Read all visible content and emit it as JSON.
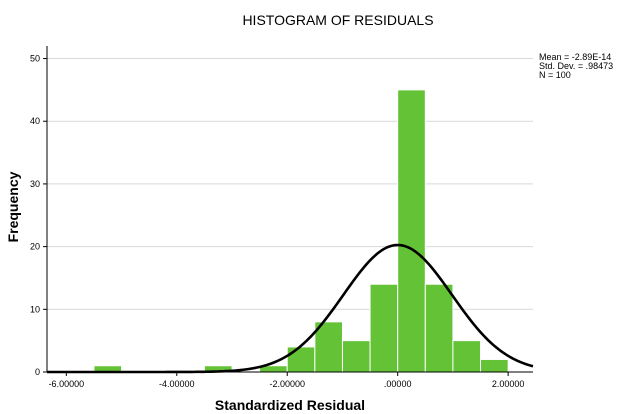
{
  "chart_data": {
    "type": "bar",
    "title": "HISTOGRAM OF RESIDUALS",
    "xlabel": "Standardized Residual",
    "ylabel": "Frequency",
    "xlim": [
      -6.35,
      2.45
    ],
    "ylim": [
      0,
      52
    ],
    "grid": true,
    "bin_width": 0.5,
    "bins": [
      {
        "start": -5.5,
        "end": -5.0,
        "count": 1
      },
      {
        "start": -3.5,
        "end": -3.0,
        "count": 1
      },
      {
        "start": -2.5,
        "end": -2.0,
        "count": 1
      },
      {
        "start": -2.0,
        "end": -1.5,
        "count": 4
      },
      {
        "start": -1.5,
        "end": -1.0,
        "count": 8
      },
      {
        "start": -1.0,
        "end": -0.5,
        "count": 5
      },
      {
        "start": -0.5,
        "end": 0.0,
        "count": 14
      },
      {
        "start": 0.0,
        "end": 0.5,
        "count": 45
      },
      {
        "start": 0.5,
        "end": 1.0,
        "count": 14
      },
      {
        "start": 1.0,
        "end": 1.5,
        "count": 5
      },
      {
        "start": 1.5,
        "end": 2.0,
        "count": 2
      }
    ],
    "x_ticks": [
      {
        "value": -6,
        "label": "-6.00000"
      },
      {
        "value": -4,
        "label": "-4.00000"
      },
      {
        "value": -2,
        "label": "-2.00000"
      },
      {
        "value": 0,
        "label": ".00000"
      },
      {
        "value": 2,
        "label": "2.00000"
      }
    ],
    "y_ticks": [
      {
        "value": 0,
        "label": "0"
      },
      {
        "value": 10,
        "label": "10"
      },
      {
        "value": 20,
        "label": "20"
      },
      {
        "value": 30,
        "label": "30"
      },
      {
        "value": 40,
        "label": "40"
      },
      {
        "value": 50,
        "label": "50"
      }
    ],
    "normal_curve": {
      "mean": 0.0,
      "std_dev": 0.98473,
      "n": 100,
      "color": "#000000"
    },
    "stats": {
      "mean_text": "Mean = -2.89E-14",
      "std_text": "Std. Dev. = .98473",
      "n_text": "N = 100"
    },
    "colors": {
      "bar_fill": "#63c235",
      "bar_edge": "#ffffff",
      "grid": "#d9d9d9",
      "axis": "#000000",
      "curve": "#000000"
    }
  }
}
